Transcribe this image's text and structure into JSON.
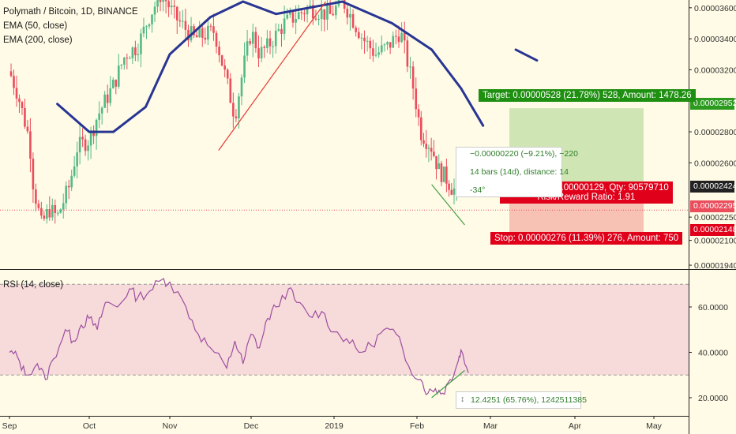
{
  "header": {
    "symbol_line": "Polymath / Bitcoin, 1D, BINANCE",
    "ema50": "EMA (50, close)",
    "ema200": "EMA (200, close)",
    "rsi_title": "RSI (14, close)"
  },
  "x_axis": [
    "Sep",
    "Oct",
    "Nov",
    "Dec",
    "2019",
    "Feb",
    "Mar",
    "Apr",
    "May"
  ],
  "price_axis": [
    "0.00003600",
    "0.00003400",
    "0.00003200",
    "0.00003000",
    "0.00002800",
    "0.00002600",
    "0.00002250",
    "0.00002100",
    "0.00001940"
  ],
  "price_badges": {
    "target": "0.00002952",
    "entry": "0.00002424",
    "current": "0.00002295",
    "stop": "0.00002148"
  },
  "rsi_axis": [
    "60.0000",
    "40.0000",
    "20.0000"
  ],
  "measure": {
    "line1": "−0.00000220 (−9.21%), −220",
    "line2": "14 bars (14d), distance: 14",
    "angle": "-34°"
  },
  "position": {
    "target_label": "Target: 0.00000528 (21.78%) 528, Amount: 1478.26",
    "pnl_line1": "Open P&L: −0.00000129, Qty: 90579710",
    "pnl_line2": "Risk/Reward Ratio: 1.91",
    "stop_label": "Stop: 0.00000276 (11.39%) 276, Amount: 750"
  },
  "rsi_measure": "12.4251 (65.76%), 1242511385",
  "colors": {
    "background": "#fffbe6",
    "up_candle": "#53b987",
    "down_candle": "#eb4d5c",
    "ema": "#283593",
    "rsi_line": "#9c4fa0",
    "rsi_band": "#f4cfd6",
    "target_zone": "#cfe6b4",
    "stop_zone": "#f7c2b4",
    "trendline": "#e53935",
    "divergence": "#43a047"
  },
  "chart_data": [
    {
      "type": "candlestick",
      "title": "Polymath / Bitcoin, 1D, BINANCE",
      "x": [
        "Sep",
        "Oct",
        "Nov",
        "Dec",
        "2019",
        "Feb",
        "Mar",
        "Apr",
        "May"
      ],
      "ylim": [
        1.92e-05,
        3.65e-05
      ],
      "series": [
        {
          "name": "EMA (50, close)",
          "points_month_price": [
            [
              0.6,
              2.98e-05
            ],
            [
              1.0,
              2.8e-05
            ],
            [
              1.3,
              2.8e-05
            ],
            [
              1.7,
              2.96e-05
            ],
            [
              2.0,
              3.3e-05
            ],
            [
              2.5,
              3.54e-05
            ],
            [
              2.9,
              3.64e-05
            ],
            [
              3.3,
              3.56e-05
            ],
            [
              3.7,
              3.6e-05
            ],
            [
              4.1,
              3.64e-05
            ],
            [
              4.7,
              3.5e-05
            ],
            [
              5.2,
              3.33e-05
            ],
            [
              5.6,
              3.08e-05
            ],
            [
              5.9,
              2.84e-05
            ]
          ]
        },
        {
          "name": "EMA (200, close)",
          "points_month_price": [
            [
              6.3,
              3.33e-05
            ],
            [
              6.55,
              3.26e-05
            ]
          ]
        }
      ],
      "close_path_month_price": [
        [
          0.0,
          3.19e-05
        ],
        [
          0.1,
          3.05e-05
        ],
        [
          0.25,
          2.75e-05
        ],
        [
          0.3,
          2.45e-05
        ],
        [
          0.4,
          2.2e-05
        ],
        [
          0.5,
          2.3e-05
        ],
        [
          0.6,
          2.25e-05
        ],
        [
          0.75,
          2.45e-05
        ],
        [
          0.85,
          2.7e-05
        ],
        [
          1.0,
          2.75e-05
        ],
        [
          1.1,
          2.9e-05
        ],
        [
          1.2,
          3e-05
        ],
        [
          1.3,
          3.1e-05
        ],
        [
          1.45,
          3.3e-05
        ],
        [
          1.6,
          3.35e-05
        ],
        [
          1.75,
          3.55e-05
        ],
        [
          1.9,
          3.7e-05
        ],
        [
          2.05,
          3.55e-05
        ],
        [
          2.3,
          3.4e-05
        ],
        [
          2.55,
          3.45e-05
        ],
        [
          2.8,
          2.9e-05
        ],
        [
          2.9,
          3.2e-05
        ],
        [
          3.0,
          3.45e-05
        ],
        [
          3.1,
          3.3e-05
        ],
        [
          3.2,
          3.35e-05
        ],
        [
          3.4,
          3.5e-05
        ],
        [
          3.7,
          3.6e-05
        ],
        [
          3.95,
          3.55e-05
        ],
        [
          4.1,
          3.65e-05
        ],
        [
          4.2,
          3.55e-05
        ],
        [
          4.35,
          3.4e-05
        ],
        [
          4.5,
          3.3e-05
        ],
        [
          4.65,
          3.35e-05
        ],
        [
          4.8,
          3.45e-05
        ],
        [
          4.95,
          3.1e-05
        ],
        [
          5.05,
          2.8e-05
        ],
        [
          5.2,
          2.7e-05
        ],
        [
          5.3,
          2.55e-05
        ],
        [
          5.4,
          2.5e-05
        ],
        [
          5.5,
          2.42e-05
        ],
        [
          5.6,
          2.55e-05
        ],
        [
          5.7,
          2.295e-05
        ]
      ],
      "trendline_red_month_price": [
        [
          2.6,
          2.68e-05
        ],
        [
          3.9,
          3.64e-05
        ]
      ],
      "divergence_price_month_price": [
        [
          5.2,
          2.46e-05
        ],
        [
          5.65,
          2.2e-05
        ]
      ]
    },
    {
      "type": "line",
      "title": "RSI (14, close)",
      "x": [
        "Sep",
        "Oct",
        "Nov",
        "Dec",
        "2019",
        "Feb",
        "Mar",
        "Apr",
        "May"
      ],
      "ylim": [
        12,
        76
      ],
      "band": [
        30,
        70
      ],
      "series": [
        {
          "name": "RSI (14, close)",
          "points_month_value": [
            [
              0.0,
              40
            ],
            [
              0.1,
              38
            ],
            [
              0.2,
              30
            ],
            [
              0.35,
              35
            ],
            [
              0.45,
              28
            ],
            [
              0.55,
              37
            ],
            [
              0.7,
              50
            ],
            [
              0.8,
              45
            ],
            [
              0.9,
              52
            ],
            [
              1.0,
              55
            ],
            [
              1.1,
              50
            ],
            [
              1.2,
              62
            ],
            [
              1.35,
              60
            ],
            [
              1.5,
              68
            ],
            [
              1.6,
              64
            ],
            [
              1.75,
              67
            ],
            [
              1.9,
              72
            ],
            [
              2.0,
              71
            ],
            [
              2.2,
              60
            ],
            [
              2.35,
              48
            ],
            [
              2.5,
              42
            ],
            [
              2.7,
              33
            ],
            [
              2.8,
              45
            ],
            [
              2.9,
              35
            ],
            [
              3.0,
              48
            ],
            [
              3.1,
              42
            ],
            [
              3.2,
              55
            ],
            [
              3.3,
              60
            ],
            [
              3.45,
              68
            ],
            [
              3.55,
              62
            ],
            [
              3.7,
              56
            ],
            [
              3.85,
              58
            ],
            [
              4.0,
              49
            ],
            [
              4.15,
              46
            ],
            [
              4.3,
              40
            ],
            [
              4.45,
              43
            ],
            [
              4.6,
              50
            ],
            [
              4.75,
              48
            ],
            [
              4.9,
              34
            ],
            [
              5.05,
              28
            ],
            [
              5.15,
              22
            ],
            [
              5.25,
              24
            ],
            [
              5.35,
              22
            ],
            [
              5.45,
              28
            ],
            [
              5.55,
              35
            ],
            [
              5.6,
              41
            ],
            [
              5.7,
              31
            ]
          ]
        }
      ],
      "divergence_rsi_month_value": [
        [
          5.2,
          20
        ],
        [
          5.65,
          32
        ]
      ]
    }
  ]
}
